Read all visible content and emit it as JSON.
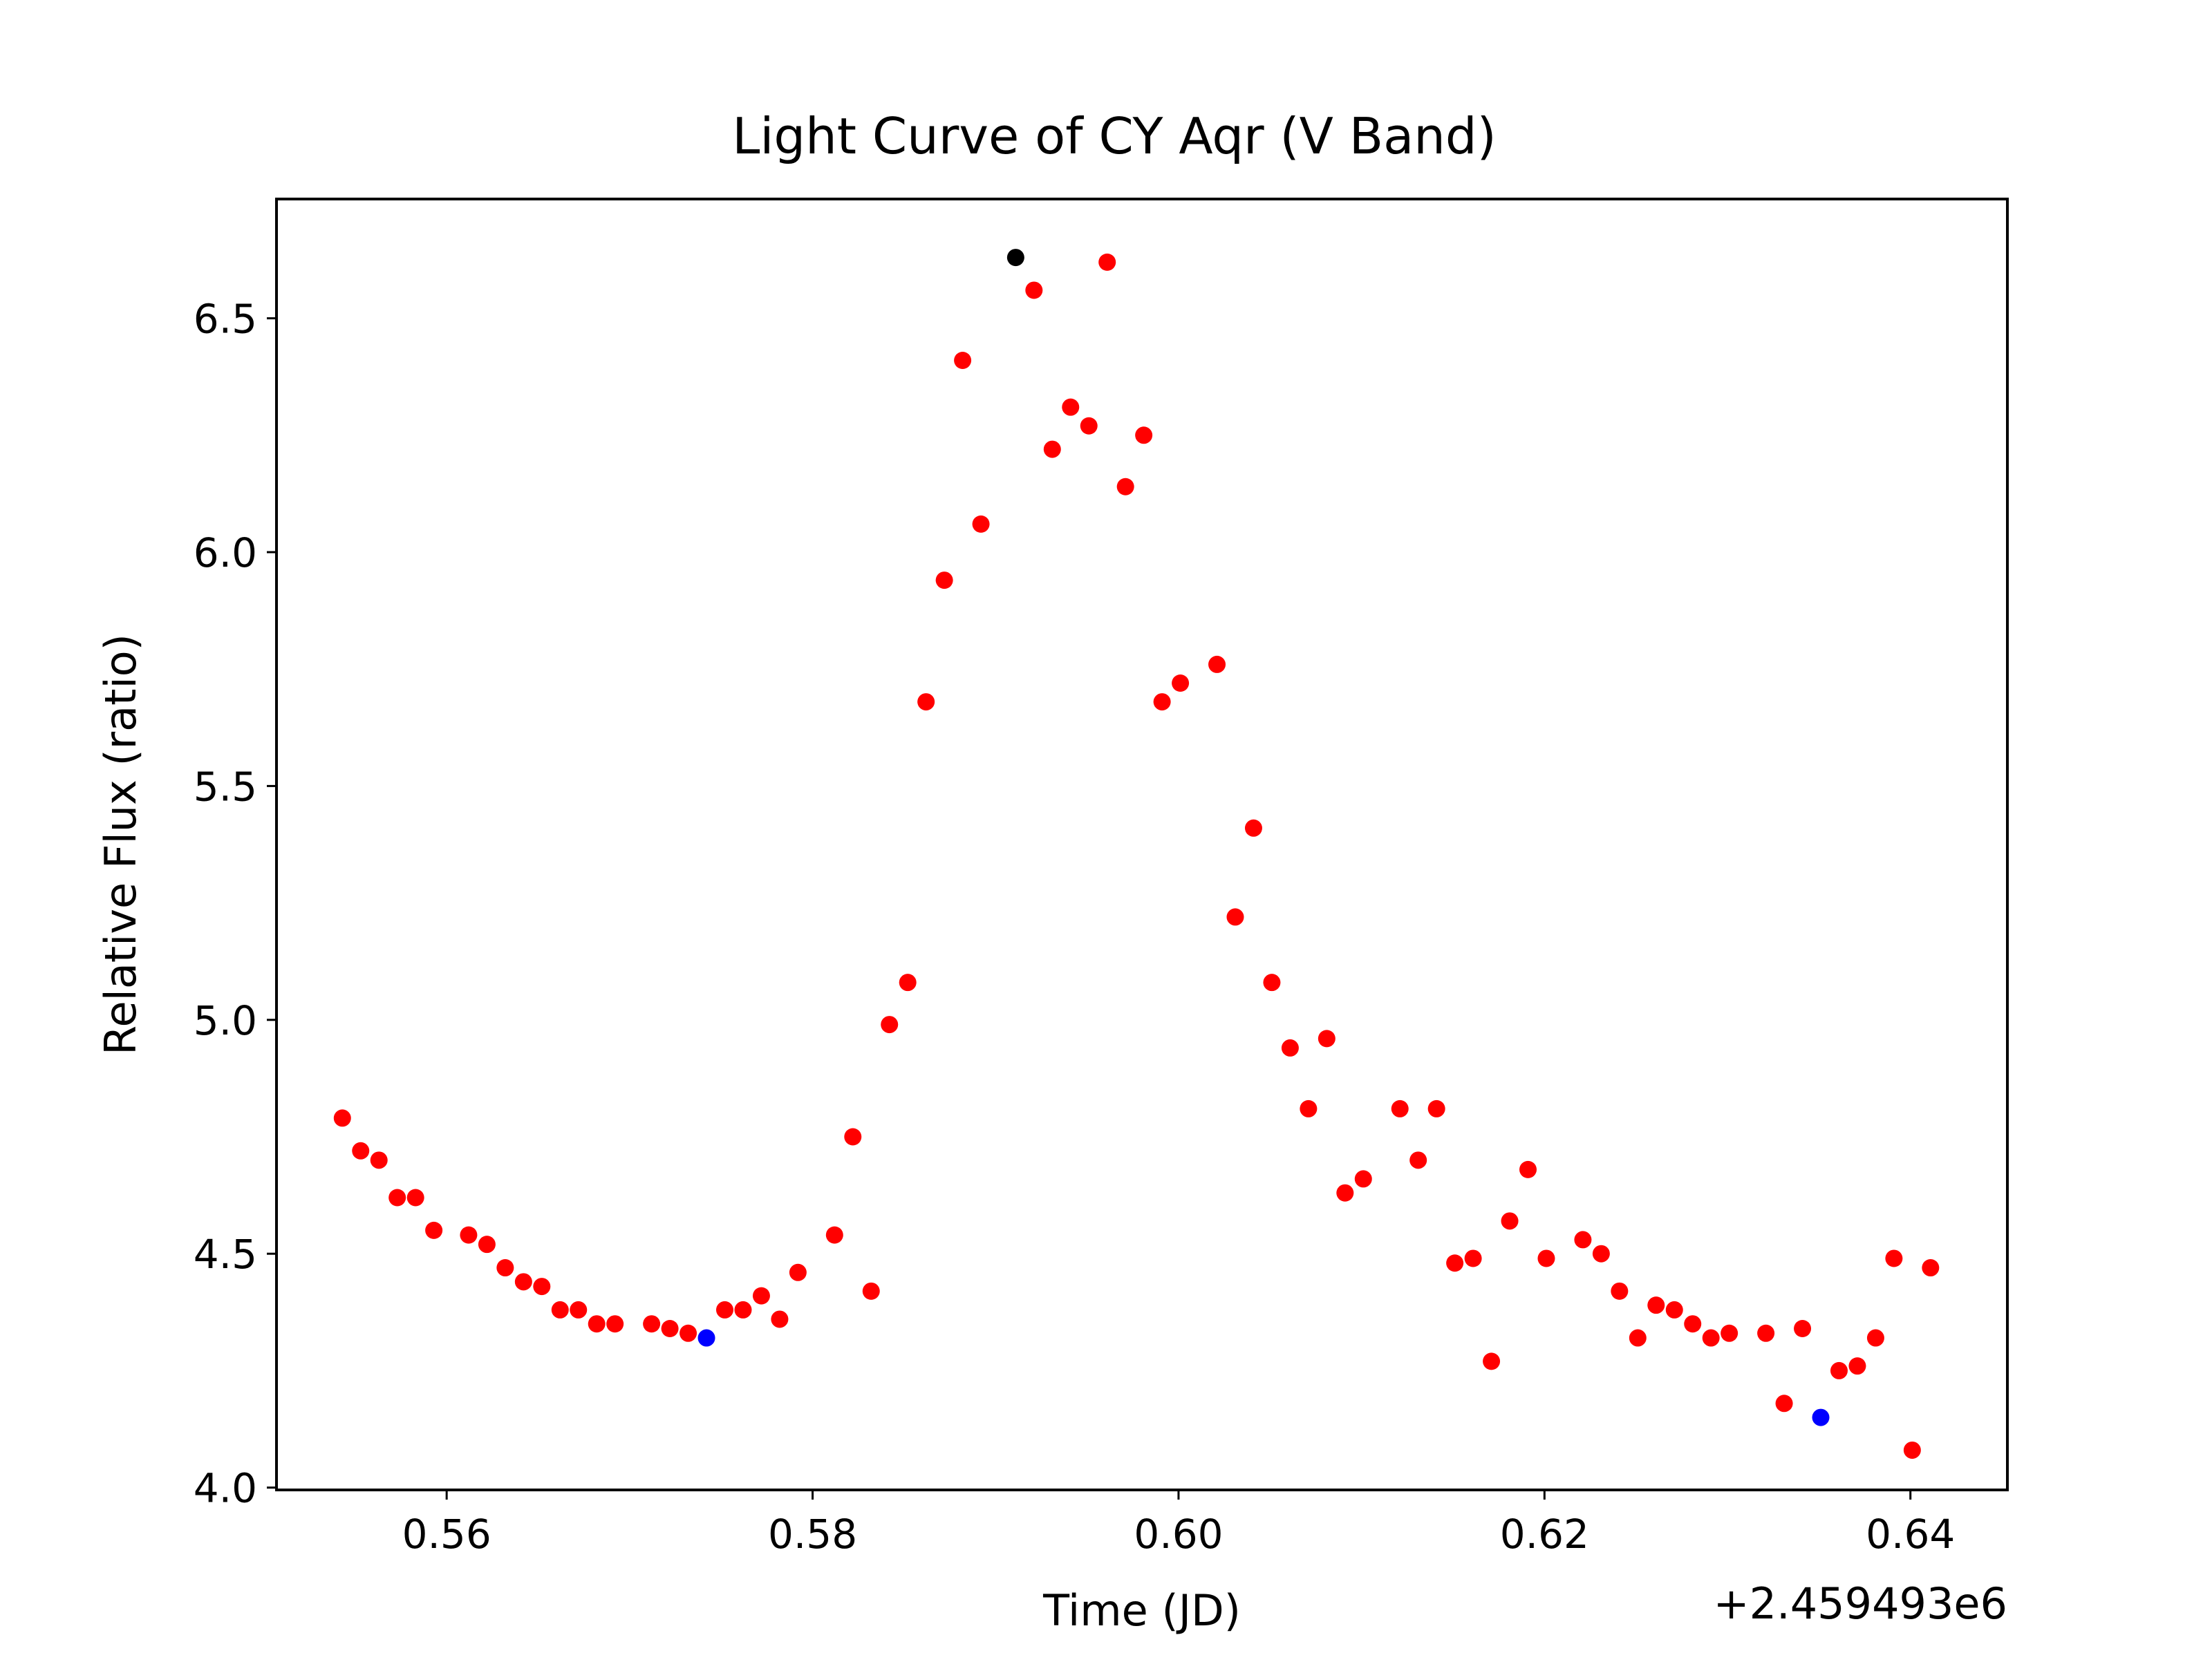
{
  "chart_data": {
    "type": "scatter",
    "title": "Light Curve of CY Aqr (V Band)",
    "xlabel": "Time (JD)",
    "ylabel": "Relative Flux (ratio)",
    "x_offset_label": "+2.459493e6",
    "xlim": [
      0.5507,
      0.6453
    ],
    "ylim": [
      3.995,
      6.755
    ],
    "xticks": [
      0.56,
      0.58,
      0.6,
      0.62,
      0.64
    ],
    "xtick_labels": [
      "0.56",
      "0.58",
      "0.60",
      "0.62",
      "0.64"
    ],
    "yticks": [
      4.0,
      4.5,
      5.0,
      5.5,
      6.0,
      6.5
    ],
    "ytick_labels": [
      "4.0",
      "4.5",
      "5.0",
      "5.5",
      "6.0",
      "6.5"
    ],
    "grid": false,
    "colors": {
      "data": "#ff0000",
      "max": "#000000",
      "min": "#0000ff",
      "axes": "#000000"
    },
    "series": [
      {
        "color": "#ff0000",
        "points": [
          [
            0.5543,
            4.79
          ],
          [
            0.5553,
            4.72
          ],
          [
            0.5563,
            4.7
          ],
          [
            0.5573,
            4.62
          ],
          [
            0.5583,
            4.62
          ],
          [
            0.5593,
            4.55
          ],
          [
            0.5612,
            4.54
          ],
          [
            0.5622,
            4.52
          ],
          [
            0.5632,
            4.47
          ],
          [
            0.5642,
            4.44
          ],
          [
            0.5652,
            4.43
          ],
          [
            0.5662,
            4.38
          ],
          [
            0.5672,
            4.38
          ],
          [
            0.5682,
            4.35
          ],
          [
            0.5692,
            4.35
          ],
          [
            0.5712,
            4.35
          ],
          [
            0.5722,
            4.34
          ],
          [
            0.5732,
            4.33
          ],
          [
            0.5752,
            4.38
          ],
          [
            0.5762,
            4.38
          ],
          [
            0.5772,
            4.41
          ],
          [
            0.5782,
            4.36
          ],
          [
            0.5792,
            4.46
          ],
          [
            0.5812,
            4.54
          ],
          [
            0.5822,
            4.75
          ],
          [
            0.5832,
            4.42
          ],
          [
            0.5842,
            4.99
          ],
          [
            0.5852,
            5.08
          ],
          [
            0.5862,
            5.68
          ],
          [
            0.5872,
            5.94
          ],
          [
            0.5882,
            6.41
          ],
          [
            0.5892,
            6.06
          ],
          [
            0.5921,
            6.56
          ],
          [
            0.5931,
            6.22
          ],
          [
            0.5941,
            6.31
          ],
          [
            0.5951,
            6.27
          ],
          [
            0.5961,
            6.62
          ],
          [
            0.5971,
            6.14
          ],
          [
            0.5981,
            6.25
          ],
          [
            0.5991,
            5.68
          ],
          [
            0.6001,
            5.72
          ],
          [
            0.6021,
            5.76
          ],
          [
            0.6031,
            5.22
          ],
          [
            0.6041,
            5.41
          ],
          [
            0.6051,
            5.08
          ],
          [
            0.6061,
            4.94
          ],
          [
            0.6071,
            4.81
          ],
          [
            0.6081,
            4.96
          ],
          [
            0.6091,
            4.63
          ],
          [
            0.6101,
            4.66
          ],
          [
            0.6121,
            4.81
          ],
          [
            0.6131,
            4.7
          ],
          [
            0.6141,
            4.81
          ],
          [
            0.6151,
            4.48
          ],
          [
            0.6161,
            4.49
          ],
          [
            0.6171,
            4.27
          ],
          [
            0.6181,
            4.57
          ],
          [
            0.6191,
            4.68
          ],
          [
            0.6201,
            4.49
          ],
          [
            0.6221,
            4.53
          ],
          [
            0.6231,
            4.5
          ],
          [
            0.6241,
            4.42
          ],
          [
            0.6251,
            4.32
          ],
          [
            0.6261,
            4.39
          ],
          [
            0.6271,
            4.38
          ],
          [
            0.6281,
            4.35
          ],
          [
            0.6291,
            4.32
          ],
          [
            0.6301,
            4.33
          ],
          [
            0.6321,
            4.33
          ],
          [
            0.6331,
            4.18
          ],
          [
            0.6341,
            4.34
          ],
          [
            0.6361,
            4.25
          ],
          [
            0.6371,
            4.26
          ],
          [
            0.6381,
            4.32
          ],
          [
            0.6391,
            4.49
          ],
          [
            0.6401,
            4.08
          ],
          [
            0.6411,
            4.47
          ]
        ]
      },
      {
        "color": "#000000",
        "points": [
          [
            0.5911,
            6.63
          ]
        ]
      },
      {
        "color": "#0000ff",
        "points": [
          [
            0.5742,
            4.32
          ],
          [
            0.6351,
            4.15
          ]
        ]
      }
    ]
  }
}
